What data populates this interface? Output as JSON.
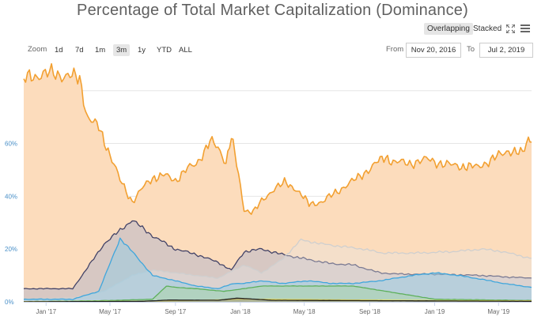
{
  "header": {
    "title": "Percentage of Total Market Capitalization (Dominance)"
  },
  "mode_toggle": {
    "overlapping_label": "Overlapping",
    "stacked_label": "Stacked",
    "selected": "Overlapping"
  },
  "icons": {
    "fullscreen": "fullscreen-icon",
    "menu": "hamburger-menu-icon"
  },
  "range_selector": {
    "zoom_label": "Zoom",
    "buttons": [
      "1d",
      "7d",
      "1m",
      "3m",
      "1y",
      "YTD",
      "ALL"
    ],
    "selected": "3m",
    "from_label": "From",
    "from_value": "Nov 20, 2016",
    "to_label": "To",
    "to_value": "Jul 2, 2019"
  },
  "chart_data": {
    "type": "area",
    "x_range": [
      "2016-11-20",
      "2019-07-02"
    ],
    "x_ticks": [
      "Jan '17",
      "May '17",
      "Sep '17",
      "Jan '18",
      "May '18",
      "Sep '18",
      "Jan '19",
      "May '19"
    ],
    "x_tick_dates": [
      "2017-01-01",
      "2017-05-01",
      "2017-09-01",
      "2018-01-01",
      "2018-05-01",
      "2018-09-01",
      "2019-01-01",
      "2019-05-01"
    ],
    "y_ticks": [
      "0%",
      "20%",
      "40%",
      "60%"
    ],
    "y_tick_values": [
      0,
      20,
      40,
      60
    ],
    "ylim": [
      0,
      88
    ],
    "grid": true,
    "legend": "none",
    "colors": {
      "s1": "#f2a031",
      "s1_fill": "#fcdcbc",
      "s2": "#434367",
      "s2_fill": "#b8b8c9",
      "s3": "#cfcfcf",
      "s4": "#3fa6dc",
      "s5": "#5db05b",
      "s6": "#e5d64c",
      "s7": "#222222",
      "axis_label": "#4a90c8",
      "grid": "#e6e6e6"
    },
    "series": [
      {
        "color_key": "s1",
        "points": [
          [
            "2016-11-20",
            84.5
          ],
          [
            "2016-12-15",
            86.0
          ],
          [
            "2017-01-15",
            86.5
          ],
          [
            "2017-02-15",
            85.5
          ],
          [
            "2017-03-05",
            84.5
          ],
          [
            "2017-03-20",
            70.0
          ],
          [
            "2017-04-10",
            66.0
          ],
          [
            "2017-05-01",
            56.0
          ],
          [
            "2017-05-20",
            46.0
          ],
          [
            "2017-06-12",
            38.0
          ],
          [
            "2017-07-01",
            43.0
          ],
          [
            "2017-07-20",
            47.0
          ],
          [
            "2017-08-10",
            48.0
          ],
          [
            "2017-09-01",
            46.0
          ],
          [
            "2017-09-20",
            50.0
          ],
          [
            "2017-10-10",
            52.0
          ],
          [
            "2017-11-05",
            61.0
          ],
          [
            "2017-11-20",
            58.0
          ],
          [
            "2017-12-05",
            53.0
          ],
          [
            "2017-12-15",
            63.0
          ],
          [
            "2017-12-25",
            52.0
          ],
          [
            "2018-01-08",
            35.0
          ],
          [
            "2018-01-25",
            34.0
          ],
          [
            "2018-02-10",
            38.0
          ],
          [
            "2018-03-05",
            43.0
          ],
          [
            "2018-03-25",
            45.0
          ],
          [
            "2018-04-15",
            43.0
          ],
          [
            "2018-05-10",
            37.0
          ],
          [
            "2018-06-05",
            38.0
          ],
          [
            "2018-07-10",
            43.0
          ],
          [
            "2018-08-10",
            47.0
          ],
          [
            "2018-09-10",
            52.0
          ],
          [
            "2018-10-01",
            55.0
          ],
          [
            "2018-10-15",
            53.0
          ],
          [
            "2018-11-15",
            52.5
          ],
          [
            "2018-12-20",
            54.0
          ],
          [
            "2019-01-20",
            52.0
          ],
          [
            "2019-02-20",
            51.5
          ],
          [
            "2019-03-20",
            51.0
          ],
          [
            "2019-04-20",
            54.0
          ],
          [
            "2019-05-20",
            57.5
          ],
          [
            "2019-06-15",
            56.0
          ],
          [
            "2019-06-26",
            62.0
          ],
          [
            "2019-07-02",
            60.5
          ]
        ]
      },
      {
        "color_key": "s2",
        "points": [
          [
            "2016-11-20",
            5.0
          ],
          [
            "2017-02-20",
            5.0
          ],
          [
            "2017-03-20",
            13.0
          ],
          [
            "2017-04-20",
            22.0
          ],
          [
            "2017-06-12",
            31.0
          ],
          [
            "2017-07-20",
            25.0
          ],
          [
            "2017-09-01",
            20.0
          ],
          [
            "2017-10-10",
            18.0
          ],
          [
            "2017-11-20",
            15.0
          ],
          [
            "2017-12-15",
            12.0
          ],
          [
            "2018-01-08",
            19.0
          ],
          [
            "2018-02-10",
            20.0
          ],
          [
            "2018-03-20",
            18.0
          ],
          [
            "2018-05-10",
            16.0
          ],
          [
            "2018-06-20",
            14.5
          ],
          [
            "2018-08-01",
            14.0
          ],
          [
            "2018-09-20",
            11.0
          ],
          [
            "2018-11-01",
            10.5
          ],
          [
            "2019-01-01",
            10.5
          ],
          [
            "2019-04-01",
            10.0
          ],
          [
            "2019-05-10",
            9.5
          ],
          [
            "2019-07-02",
            9.0
          ]
        ]
      },
      {
        "color_key": "s3",
        "points": [
          [
            "2016-11-20",
            1.0
          ],
          [
            "2017-02-20",
            1.5
          ],
          [
            "2017-04-20",
            4.0
          ],
          [
            "2017-06-12",
            10.0
          ],
          [
            "2017-07-20",
            12.0
          ],
          [
            "2017-09-01",
            11.0
          ],
          [
            "2017-10-10",
            10.0
          ],
          [
            "2017-11-20",
            9.0
          ],
          [
            "2017-12-20",
            12.0
          ],
          [
            "2018-01-08",
            14.0
          ],
          [
            "2018-02-10",
            11.0
          ],
          [
            "2018-03-20",
            16.0
          ],
          [
            "2018-04-25",
            23.5
          ],
          [
            "2018-06-01",
            22.0
          ],
          [
            "2018-07-10",
            21.0
          ],
          [
            "2018-08-20",
            20.0
          ],
          [
            "2018-09-25",
            18.5
          ],
          [
            "2018-12-01",
            18.5
          ],
          [
            "2019-02-01",
            19.0
          ],
          [
            "2019-04-01",
            20.0
          ],
          [
            "2019-05-10",
            19.0
          ],
          [
            "2019-06-20",
            17.0
          ],
          [
            "2019-07-02",
            16.5
          ]
        ]
      },
      {
        "color_key": "s4",
        "points": [
          [
            "2016-11-20",
            1.0
          ],
          [
            "2017-02-20",
            1.0
          ],
          [
            "2017-04-10",
            4.0
          ],
          [
            "2017-05-20",
            24.0
          ],
          [
            "2017-06-12",
            19.0
          ],
          [
            "2017-07-20",
            10.0
          ],
          [
            "2017-09-01",
            8.0
          ],
          [
            "2017-10-10",
            6.0
          ],
          [
            "2017-11-20",
            5.0
          ],
          [
            "2017-12-20",
            7.0
          ],
          [
            "2018-01-08",
            7.0
          ],
          [
            "2018-02-10",
            8.0
          ],
          [
            "2018-03-20",
            7.0
          ],
          [
            "2018-05-10",
            8.0
          ],
          [
            "2018-06-20",
            7.0
          ],
          [
            "2018-08-01",
            7.0
          ],
          [
            "2018-09-20",
            8.0
          ],
          [
            "2018-11-20",
            10.0
          ],
          [
            "2019-01-01",
            11.0
          ],
          [
            "2019-02-15",
            10.0
          ],
          [
            "2019-04-01",
            8.5
          ],
          [
            "2019-05-10",
            7.0
          ],
          [
            "2019-07-02",
            5.5
          ]
        ]
      },
      {
        "color_key": "s5",
        "points": [
          [
            "2016-11-20",
            0.1
          ],
          [
            "2017-03-01",
            0.3
          ],
          [
            "2017-05-01",
            0.5
          ],
          [
            "2017-07-20",
            1.0
          ],
          [
            "2017-08-15",
            6.0
          ],
          [
            "2017-09-01",
            5.5
          ],
          [
            "2017-10-10",
            5.0
          ],
          [
            "2017-12-01",
            4.0
          ],
          [
            "2018-01-08",
            5.0
          ],
          [
            "2018-02-10",
            6.0
          ],
          [
            "2018-05-10",
            6.0
          ],
          [
            "2018-08-01",
            6.0
          ],
          [
            "2018-11-01",
            3.0
          ],
          [
            "2019-01-01",
            1.0
          ],
          [
            "2019-07-02",
            0.5
          ]
        ]
      },
      {
        "color_key": "s6",
        "points": [
          [
            "2016-11-20",
            0.1
          ],
          [
            "2017-06-01",
            0.2
          ],
          [
            "2017-10-01",
            0.5
          ],
          [
            "2018-01-08",
            1.0
          ],
          [
            "2018-06-01",
            0.8
          ],
          [
            "2019-01-01",
            0.5
          ],
          [
            "2019-07-02",
            0.4
          ]
        ]
      },
      {
        "color_key": "s7",
        "points": [
          [
            "2016-11-20",
            0.0
          ],
          [
            "2017-07-01",
            0.2
          ],
          [
            "2017-08-20",
            0.7
          ],
          [
            "2017-11-20",
            0.6
          ],
          [
            "2017-12-25",
            1.4
          ],
          [
            "2018-01-15",
            1.2
          ],
          [
            "2018-03-01",
            0.6
          ],
          [
            "2019-07-02",
            0.2
          ]
        ]
      }
    ]
  }
}
